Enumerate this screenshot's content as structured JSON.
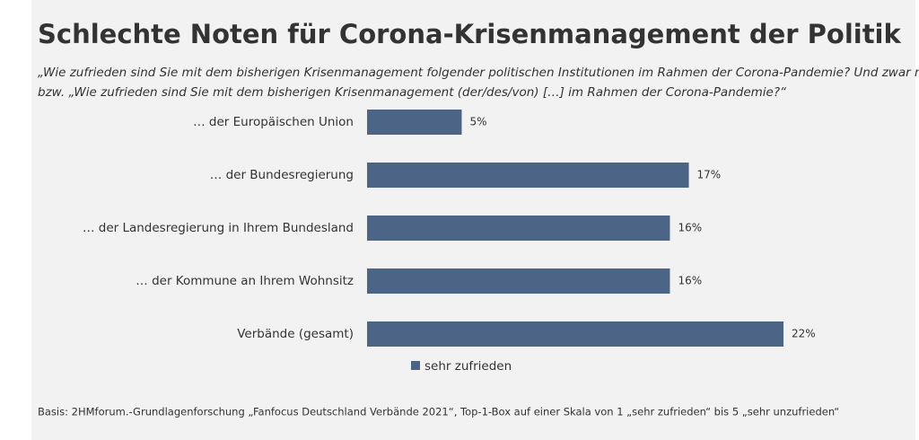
{
  "chart_data": {
    "type": "hbar",
    "title": "Schlechte Noten für Corona-Krisenmanagement der Politik",
    "subtitle": [
      "„Wie zufrieden sind Sie mit dem bisherigen Krisenmanagement folgender politischen Institutionen im Rahmen der Corona-Pandemie? Und zwar mit…“",
      "bzw. „Wie zufrieden sind Sie mit dem bisherigen Krisenmanagement (der/des/von) […] im Rahmen der Corona-Pandemie?“"
    ],
    "categories": [
      "… der Europäischen Union",
      "… der Bundesregierung",
      "… der Landesregierung in Ihrem Bundesland",
      "… der Kommune an Ihrem Wohnsitz",
      "Verbände (gesamt)"
    ],
    "series": [
      {
        "name": "sehr zufrieden",
        "color": "#4c6587",
        "values": [
          5,
          17,
          16,
          16,
          22
        ],
        "value_labels": [
          "5%",
          "17%",
          "16%",
          "16%",
          "22%"
        ]
      }
    ],
    "footnote": "Basis: 2HMforum.-Grundlagenforschung „Fanfocus Deutschland Verbände 2021“, Top-1-Box auf einer Skala von 1 „sehr zufrieden“ bis 5 „sehr unzufrieden“"
  }
}
